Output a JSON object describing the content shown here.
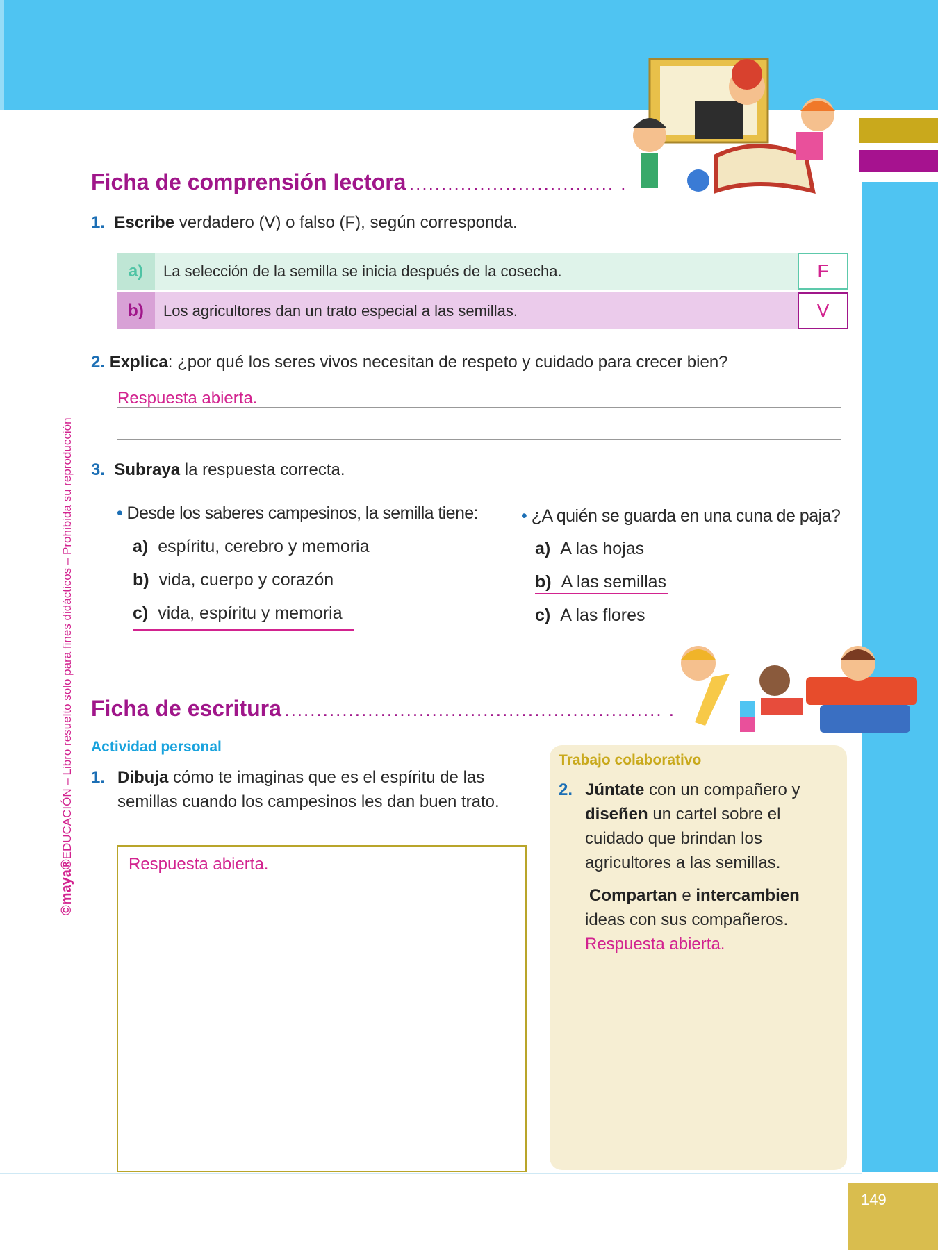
{
  "side_text": {
    "logo": "©maya®",
    "text": "EDUCACIÓN – Libro resuelto solo para fines didácticos – Prohibida su reproducción"
  },
  "section1": {
    "title": "Ficha de comprensión lectora",
    "dots": "................................ ."
  },
  "q1": {
    "num": "1.",
    "bold": "Escribe",
    "rest": " verdadero (V) o falso (F), según corresponda.",
    "rows": [
      {
        "label": "a)",
        "text": "La selección de la semilla se inicia después de la cosecha.",
        "answer": "F"
      },
      {
        "label": "b)",
        "text": "Los agricultores dan un trato especial a las semillas.",
        "answer": "V"
      }
    ]
  },
  "q2": {
    "num": "2.",
    "bold": "Explica",
    "rest": ": ¿por qué los seres vivos necesitan de respeto y cuidado para crecer bien?",
    "answer": "Respuesta abierta."
  },
  "q3": {
    "num": "3.",
    "bold": "Subraya",
    "rest": " la respuesta correcta.",
    "left": {
      "question": "Desde los saberes campesinos, la semilla tiene:",
      "options": [
        {
          "l": "a)",
          "t": "espíritu, cerebro y memoria"
        },
        {
          "l": "b)",
          "t": "vida, cuerpo y corazón"
        },
        {
          "l": "c)",
          "t": "vida, espíritu y memoria"
        }
      ],
      "correct": "c)"
    },
    "right": {
      "question": "¿A quién se guarda en una cuna de paja?",
      "options": [
        {
          "l": "a)",
          "t": "A las hojas"
        },
        {
          "l": "b)",
          "t": "A las semillas"
        },
        {
          "l": "c)",
          "t": "A las flores"
        }
      ],
      "correct": "b)"
    }
  },
  "section2": {
    "title": "Ficha de escritura",
    "dots": "........................................................... ."
  },
  "personal": {
    "heading": "Actividad personal",
    "num": "1.",
    "bold": "Dibuja",
    "rest": " cómo te imaginas que es el espíritu de las semillas cuando los campesinos les dan buen trato.",
    "answer": "Respuesta abierta."
  },
  "collab": {
    "heading": "Trabajo colaborativo",
    "num": "2.",
    "b1": "Júntate",
    "t1": " con un compañero y ",
    "b2": "diseñen",
    "t2": " un cartel sobre el cuidado que brindan los agricultores a las semillas.",
    "b3": "Compartan",
    "t3": " e ",
    "b4": "intercambien",
    "t4": " ideas con sus compañeros.",
    "answer": "Respuesta abierta."
  },
  "page_number": "149",
  "colors": {
    "blue": "#4fc4f2",
    "magenta": "#a0168a",
    "gold": "#c9a91c",
    "pink": "#d2238f",
    "green_row": "#dff3ea",
    "purple_row": "#ebcbeb"
  }
}
